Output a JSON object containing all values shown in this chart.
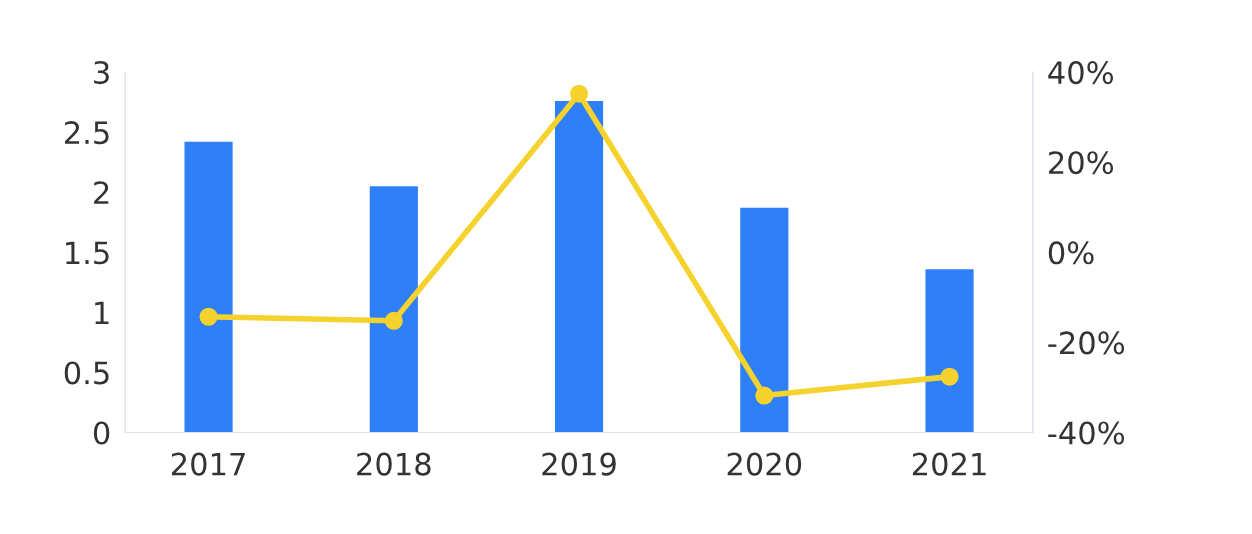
{
  "chart_data": {
    "type": "bar",
    "categories": [
      "2017",
      "2018",
      "2019",
      "2020",
      "2021"
    ],
    "series": [
      {
        "color": "#2f80f6",
        "values": [
          2.42,
          2.05,
          2.76,
          1.87,
          1.36
        ]
      },
      {
        "type": "line",
        "axis": "y2",
        "color": "#f5d22e",
        "marker": "circle",
        "line_style": "solid",
        "values": [
          -14.3,
          -15.2,
          35.2,
          -31.8,
          -27.6
        ]
      }
    ],
    "ylim": [
      0,
      3
    ],
    "yticks": [
      0,
      0.5,
      1,
      1.5,
      2,
      2.5,
      3
    ],
    "y2lim": [
      -40,
      40
    ],
    "y2ticks": [
      {
        "value": -40,
        "label": "-40%"
      },
      {
        "value": -20,
        "label": "-20%"
      },
      {
        "value": 0,
        "label": "0%"
      },
      {
        "value": 20,
        "label": "20%"
      },
      {
        "value": 40,
        "label": "40%"
      }
    ],
    "grid": false,
    "legend": false
  }
}
